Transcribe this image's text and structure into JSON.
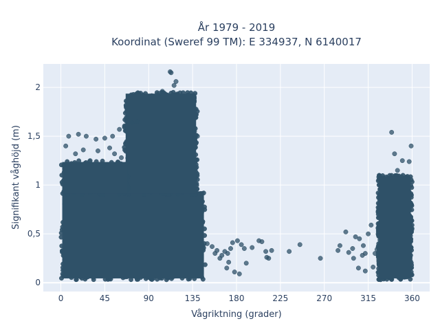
{
  "chart_data": {
    "type": "scatter",
    "title_line1": "År 1979 - 2019",
    "title_line2": "Koordinat (Sweref 99 TM): E 334937, N 6140017",
    "xlabel": "Vågriktning (grader)",
    "ylabel": "Signifikant våghöjd (m)",
    "xlim": [
      -18,
      378
    ],
    "ylim": [
      -0.09,
      2.24
    ],
    "x_ticks": [
      0,
      45,
      90,
      135,
      180,
      225,
      270,
      315,
      360
    ],
    "x_tick_labels": [
      "0",
      "45",
      "90",
      "135",
      "180",
      "225",
      "270",
      "315",
      "360"
    ],
    "y_ticks": [
      0,
      0.5,
      1,
      1.5,
      2
    ],
    "y_tick_labels": [
      "0",
      "0,5",
      "1",
      "1,5",
      "2"
    ],
    "grid": true,
    "marker_color": "#2f5168",
    "background_color": "#e5ecf6",
    "series": [
      {
        "dense_clusters": [
          {
            "x_range": [
              0,
              148
            ],
            "y_range": [
              0.03,
              0.95
            ],
            "density": "very high"
          },
          {
            "x_range": [
              65,
              140
            ],
            "y_range": [
              0.9,
              1.95
            ],
            "density": "very high"
          },
          {
            "x_range": [
              0,
              70
            ],
            "y_range": [
              0.9,
              1.25
            ],
            "density": "medium"
          },
          {
            "x_range": [
              325,
              360
            ],
            "y_range": [
              0.03,
              1.1
            ],
            "density": "very high"
          }
        ],
        "points": [
          [
            112,
            2.16
          ],
          [
            113,
            2.15
          ],
          [
            118,
            2.06
          ],
          [
            116,
            2.02
          ],
          [
            104,
            1.96
          ],
          [
            101,
            1.94
          ],
          [
            137,
            1.55
          ],
          [
            140,
            1.5
          ],
          [
            137,
            1.48
          ],
          [
            339,
            1.54
          ],
          [
            359,
            1.4
          ],
          [
            342,
            1.32
          ],
          [
            350,
            1.25
          ],
          [
            357,
            1.24
          ],
          [
            345,
            1.15
          ],
          [
            67,
            1.69
          ],
          [
            73,
            1.64
          ],
          [
            78,
            1.65
          ],
          [
            60,
            1.57
          ],
          [
            53,
            1.5
          ],
          [
            45,
            1.48
          ],
          [
            36,
            1.47
          ],
          [
            26,
            1.5
          ],
          [
            8,
            1.5
          ],
          [
            18,
            1.52
          ],
          [
            5,
            1.4
          ],
          [
            23,
            1.36
          ],
          [
            38,
            1.35
          ],
          [
            50,
            1.38
          ],
          [
            15,
            1.32
          ],
          [
            30,
            1.25
          ],
          [
            44,
            1.2
          ],
          [
            55,
            1.32
          ],
          [
            62,
            1.28
          ],
          [
            3,
            1.2
          ],
          [
            150,
            0.4
          ],
          [
            155,
            0.37
          ],
          [
            158,
            0.3
          ],
          [
            160,
            0.33
          ],
          [
            163,
            0.25
          ],
          [
            165,
            0.28
          ],
          [
            168,
            0.32
          ],
          [
            171,
            0.3
          ],
          [
            174,
            0.35
          ],
          [
            176,
            0.41
          ],
          [
            181,
            0.43
          ],
          [
            185,
            0.39
          ],
          [
            188,
            0.35
          ],
          [
            196,
            0.36
          ],
          [
            203,
            0.43
          ],
          [
            206,
            0.42
          ],
          [
            210,
            0.32
          ],
          [
            211,
            0.26
          ],
          [
            213,
            0.25
          ],
          [
            216,
            0.33
          ],
          [
            234,
            0.32
          ],
          [
            245,
            0.39
          ],
          [
            266,
            0.25
          ],
          [
            284,
            0.33
          ],
          [
            286,
            0.38
          ],
          [
            292,
            0.52
          ],
          [
            295,
            0.31
          ],
          [
            299,
            0.35
          ],
          [
            302,
            0.47
          ],
          [
            306,
            0.45
          ],
          [
            309,
            0.28
          ],
          [
            312,
            0.3
          ],
          [
            315,
            0.5
          ],
          [
            318,
            0.59
          ],
          [
            322,
            0.3
          ],
          [
            324,
            0.34
          ],
          [
            310,
            0.38
          ],
          [
            300,
            0.25
          ],
          [
            190,
            0.2
          ],
          [
            170,
            0.15
          ],
          [
            178,
            0.11
          ],
          [
            183,
            0.09
          ],
          [
            172,
            0.21
          ],
          [
            305,
            0.15
          ],
          [
            312,
            0.12
          ],
          [
            320,
            0.16
          ]
        ]
      }
    ]
  }
}
